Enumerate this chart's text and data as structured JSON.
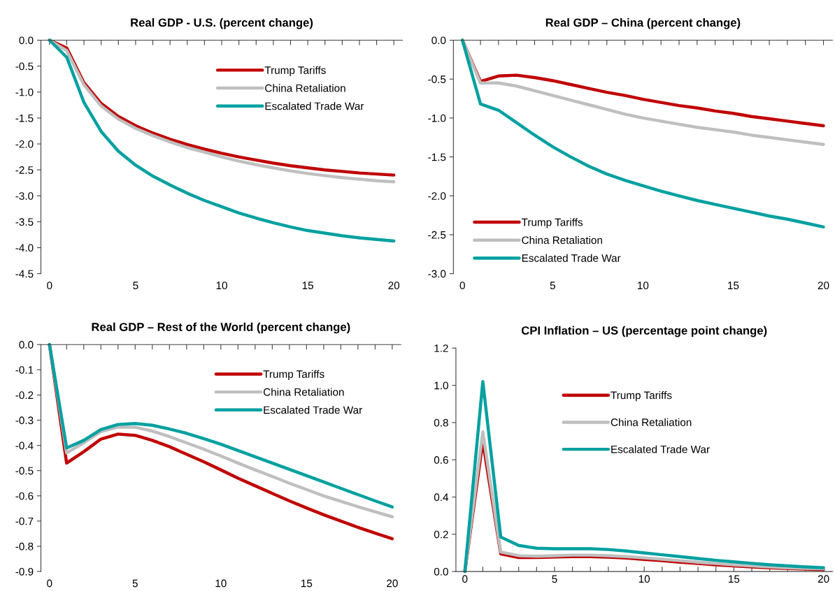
{
  "chart_data": [
    {
      "type": "line",
      "title": "Real GDP - U.S. (percent change)",
      "x": [
        0,
        1,
        2,
        3,
        4,
        5,
        6,
        7,
        8,
        9,
        10,
        11,
        12,
        13,
        14,
        15,
        16,
        17,
        18,
        19,
        20
      ],
      "series": [
        {
          "name": "Trump Tariffs",
          "color": "#c00000",
          "values": [
            0,
            -0.15,
            -0.82,
            -1.22,
            -1.47,
            -1.65,
            -1.79,
            -1.91,
            -2.01,
            -2.1,
            -2.18,
            -2.25,
            -2.31,
            -2.37,
            -2.42,
            -2.46,
            -2.5,
            -2.53,
            -2.56,
            -2.58,
            -2.6
          ]
        },
        {
          "name": "China Retaliation",
          "color": "#bfbfbf",
          "values": [
            0,
            -0.2,
            -0.86,
            -1.27,
            -1.52,
            -1.7,
            -1.84,
            -1.96,
            -2.07,
            -2.16,
            -2.25,
            -2.33,
            -2.4,
            -2.46,
            -2.52,
            -2.57,
            -2.61,
            -2.65,
            -2.68,
            -2.71,
            -2.73
          ]
        },
        {
          "name": "Escalated Trade War",
          "color": "#00a0a0",
          "values": [
            0,
            -0.33,
            -1.2,
            -1.76,
            -2.14,
            -2.41,
            -2.62,
            -2.79,
            -2.95,
            -3.09,
            -3.21,
            -3.33,
            -3.43,
            -3.52,
            -3.6,
            -3.67,
            -3.72,
            -3.77,
            -3.81,
            -3.84,
            -3.87
          ]
        }
      ],
      "xlim": [
        -0.5,
        20.5
      ],
      "xticks": [
        0,
        {
          "value": 1,
          "label": null
        },
        {
          "value": 2,
          "label": null
        },
        {
          "value": 3,
          "label": null
        },
        {
          "value": 4,
          "label": null
        },
        5,
        {
          "value": 6,
          "label": null
        },
        {
          "value": 7,
          "label": null
        },
        {
          "value": 8,
          "label": null
        },
        {
          "value": 9,
          "label": null
        },
        10,
        {
          "value": 11,
          "label": null
        },
        {
          "value": 12,
          "label": null
        },
        {
          "value": 13,
          "label": null
        },
        {
          "value": 14,
          "label": null
        },
        15,
        {
          "value": 16,
          "label": null
        },
        {
          "value": 17,
          "label": null
        },
        {
          "value": 18,
          "label": null
        },
        {
          "value": 19,
          "label": null
        },
        20
      ],
      "ylim": [
        -4.5,
        0.0
      ],
      "yticks": [
        -4.5,
        {
          "value": -4,
          "label": "-4.0"
        },
        -3.5,
        {
          "value": -3,
          "label": "-3.0"
        },
        -2.5,
        {
          "value": -2,
          "label": "-2.0"
        },
        -1.5,
        {
          "value": -1,
          "label": "-1.0"
        },
        -0.5,
        {
          "value": 0,
          "label": "0.0"
        }
      ],
      "legend": "top right",
      "grid": false
    },
    {
      "type": "line",
      "title": "Real GDP – China (percent change)",
      "x": [
        0,
        1,
        2,
        3,
        4,
        5,
        6,
        7,
        8,
        9,
        10,
        11,
        12,
        13,
        14,
        15,
        16,
        17,
        18,
        19,
        20
      ],
      "series": [
        {
          "name": "Trump Tariffs",
          "color": "#c00000",
          "values": [
            0,
            -0.53,
            -0.46,
            -0.45,
            -0.48,
            -0.52,
            -0.57,
            -0.62,
            -0.67,
            -0.71,
            -0.76,
            -0.8,
            -0.84,
            -0.87,
            -0.91,
            -0.94,
            -0.98,
            -1.01,
            -1.04,
            -1.07,
            -1.1
          ]
        },
        {
          "name": "China Retaliation",
          "color": "#bfbfbf",
          "values": [
            0,
            -0.55,
            -0.55,
            -0.59,
            -0.65,
            -0.71,
            -0.77,
            -0.83,
            -0.89,
            -0.95,
            -1.0,
            -1.04,
            -1.08,
            -1.12,
            -1.15,
            -1.18,
            -1.22,
            -1.25,
            -1.28,
            -1.31,
            -1.34
          ]
        },
        {
          "name": "Escalated Trade War",
          "color": "#00a0a0",
          "values": [
            0,
            -0.82,
            -0.9,
            -1.06,
            -1.22,
            -1.37,
            -1.5,
            -1.62,
            -1.72,
            -1.8,
            -1.87,
            -1.94,
            -2.0,
            -2.06,
            -2.11,
            -2.16,
            -2.21,
            -2.26,
            -2.3,
            -2.35,
            -2.4
          ]
        }
      ],
      "xlim": [
        -0.5,
        20.5
      ],
      "xticks": [
        0,
        {
          "value": 1,
          "label": null
        },
        {
          "value": 2,
          "label": null
        },
        {
          "value": 3,
          "label": null
        },
        {
          "value": 4,
          "label": null
        },
        5,
        {
          "value": 6,
          "label": null
        },
        {
          "value": 7,
          "label": null
        },
        {
          "value": 8,
          "label": null
        },
        {
          "value": 9,
          "label": null
        },
        10,
        {
          "value": 11,
          "label": null
        },
        {
          "value": 12,
          "label": null
        },
        {
          "value": 13,
          "label": null
        },
        {
          "value": 14,
          "label": null
        },
        15,
        {
          "value": 16,
          "label": null
        },
        {
          "value": 17,
          "label": null
        },
        {
          "value": 18,
          "label": null
        },
        {
          "value": 19,
          "label": null
        },
        20
      ],
      "ylim": [
        -3.0,
        0.0
      ],
      "yticks": [
        {
          "value": -3,
          "label": "-3.0"
        },
        -2.5,
        {
          "value": -2,
          "label": "-2.0"
        },
        -1.5,
        {
          "value": -1,
          "label": "-1.0"
        },
        -0.5,
        {
          "value": 0,
          "label": "0.0"
        }
      ],
      "legend": "bottom left",
      "grid": false
    },
    {
      "type": "line",
      "title": "Real GDP – Rest of the World (percent change)",
      "x": [
        0,
        1,
        2,
        3,
        4,
        5,
        6,
        7,
        8,
        9,
        10,
        11,
        12,
        13,
        14,
        15,
        16,
        17,
        18,
        19,
        20
      ],
      "series": [
        {
          "name": "Trump Tariffs",
          "color": "#c00000",
          "values": [
            0,
            -0.47,
            -0.425,
            -0.375,
            -0.355,
            -0.36,
            -0.38,
            -0.405,
            -0.435,
            -0.465,
            -0.497,
            -0.53,
            -0.56,
            -0.59,
            -0.62,
            -0.648,
            -0.675,
            -0.7,
            -0.725,
            -0.748,
            -0.77
          ]
        },
        {
          "name": "China Retaliation",
          "color": "#bfbfbf",
          "values": [
            0,
            -0.43,
            -0.39,
            -0.345,
            -0.327,
            -0.328,
            -0.343,
            -0.365,
            -0.39,
            -0.415,
            -0.442,
            -0.47,
            -0.497,
            -0.523,
            -0.55,
            -0.575,
            -0.6,
            -0.622,
            -0.643,
            -0.663,
            -0.683
          ]
        },
        {
          "name": "Escalated Trade War",
          "color": "#00a0a0",
          "values": [
            0,
            -0.41,
            -0.38,
            -0.337,
            -0.317,
            -0.313,
            -0.32,
            -0.335,
            -0.352,
            -0.373,
            -0.395,
            -0.42,
            -0.445,
            -0.47,
            -0.495,
            -0.52,
            -0.545,
            -0.57,
            -0.595,
            -0.62,
            -0.644
          ]
        }
      ],
      "xlim": [
        -0.5,
        20.5
      ],
      "xticks": [
        0,
        {
          "value": 1,
          "label": null
        },
        {
          "value": 2,
          "label": null
        },
        {
          "value": 3,
          "label": null
        },
        {
          "value": 4,
          "label": null
        },
        5,
        {
          "value": 6,
          "label": null
        },
        {
          "value": 7,
          "label": null
        },
        {
          "value": 8,
          "label": null
        },
        {
          "value": 9,
          "label": null
        },
        10,
        {
          "value": 11,
          "label": null
        },
        {
          "value": 12,
          "label": null
        },
        {
          "value": 13,
          "label": null
        },
        {
          "value": 14,
          "label": null
        },
        15,
        {
          "value": 16,
          "label": null
        },
        {
          "value": 17,
          "label": null
        },
        {
          "value": 18,
          "label": null
        },
        {
          "value": 19,
          "label": null
        },
        20
      ],
      "ylim": [
        -0.9,
        0.0
      ],
      "yticks": [
        -0.9,
        -0.8,
        -0.7,
        -0.6,
        -0.5,
        -0.4,
        -0.3,
        -0.2,
        -0.1,
        {
          "value": 0,
          "label": "0.0"
        }
      ],
      "legend": "top right",
      "grid": false
    },
    {
      "type": "line",
      "title": "CPI Inflation – US (percentage point change)",
      "x": [
        0,
        1,
        2,
        3,
        4,
        5,
        6,
        7,
        8,
        9,
        10,
        11,
        12,
        13,
        14,
        15,
        16,
        17,
        18,
        19,
        20
      ],
      "series": [
        {
          "name": "Trump Tariffs",
          "color": "#c00000",
          "values": [
            0,
            0.7,
            0.095,
            0.075,
            0.075,
            0.078,
            0.08,
            0.08,
            0.077,
            0.072,
            0.065,
            0.058,
            0.05,
            0.043,
            0.036,
            0.03,
            0.025,
            0.02,
            0.016,
            0.013,
            0.01
          ]
        },
        {
          "name": "China Retaliation",
          "color": "#bfbfbf",
          "values": [
            0,
            0.75,
            0.105,
            0.085,
            0.082,
            0.085,
            0.088,
            0.088,
            0.085,
            0.08,
            0.073,
            0.066,
            0.058,
            0.05,
            0.043,
            0.036,
            0.03,
            0.025,
            0.02,
            0.017,
            0.015
          ]
        },
        {
          "name": "Escalated Trade War",
          "color": "#00a0a0",
          "values": [
            0,
            1.02,
            0.185,
            0.14,
            0.125,
            0.122,
            0.122,
            0.122,
            0.118,
            0.11,
            0.1,
            0.09,
            0.08,
            0.07,
            0.06,
            0.052,
            0.044,
            0.036,
            0.03,
            0.025,
            0.02
          ]
        }
      ],
      "xlim": [
        -0.5,
        20.5
      ],
      "xticks": [
        0,
        {
          "value": 1,
          "label": null
        },
        {
          "value": 2,
          "label": null
        },
        {
          "value": 3,
          "label": null
        },
        {
          "value": 4,
          "label": null
        },
        5,
        {
          "value": 6,
          "label": null
        },
        {
          "value": 7,
          "label": null
        },
        {
          "value": 8,
          "label": null
        },
        {
          "value": 9,
          "label": null
        },
        10,
        {
          "value": 11,
          "label": null
        },
        {
          "value": 12,
          "label": null
        },
        {
          "value": 13,
          "label": null
        },
        {
          "value": 14,
          "label": null
        },
        15,
        {
          "value": 16,
          "label": null
        },
        {
          "value": 17,
          "label": null
        },
        {
          "value": 18,
          "label": null
        },
        {
          "value": 19,
          "label": null
        },
        20
      ],
      "ylim": [
        0.0,
        1.2
      ],
      "yticks": [
        {
          "value": 0,
          "label": "0.0"
        },
        0.2,
        0.4,
        0.6,
        0.8,
        {
          "value": 1,
          "label": "1.0"
        },
        1.2
      ],
      "legend": "top",
      "grid": false
    }
  ]
}
